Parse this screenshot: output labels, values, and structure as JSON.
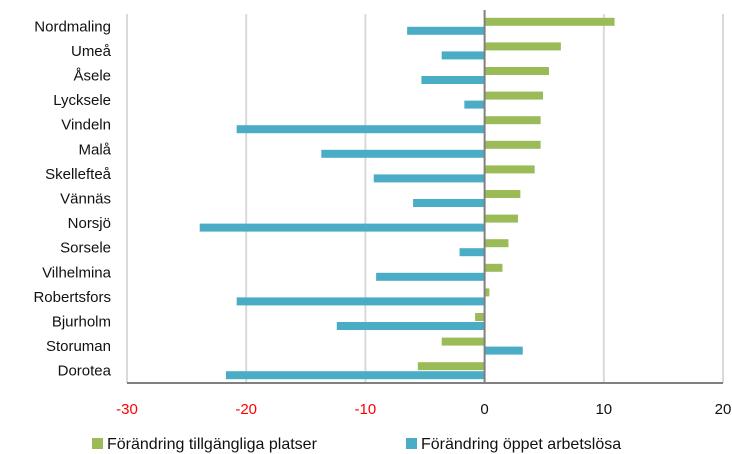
{
  "chart_data": {
    "type": "bar",
    "orientation": "horizontal",
    "categories": [
      "Nordmaling",
      "Umeå",
      "Åsele",
      "Lycksele",
      "Vindeln",
      "Malå",
      "Skellefteå",
      "Vännäs",
      "Norsjö",
      "Sorsele",
      "Vilhelmina",
      "Robertsfors",
      "Bjurholm",
      "Storuman",
      "Dorotea"
    ],
    "series": [
      {
        "name": "Förändring tillgängliga platser",
        "color": "#9bbb59",
        "values": [
          10.9,
          6.4,
          5.4,
          4.9,
          4.7,
          4.7,
          4.2,
          3.0,
          2.8,
          2.0,
          1.5,
          0.4,
          -0.8,
          -3.6,
          -5.6
        ]
      },
      {
        "name": "Förändring öppet arbetslösa",
        "color": "#4bacc6",
        "values": [
          -6.5,
          -3.6,
          -5.3,
          -1.7,
          -20.8,
          -13.7,
          -9.3,
          -6.0,
          -23.9,
          -2.1,
          -9.1,
          -20.8,
          -12.4,
          3.2,
          -21.7
        ]
      }
    ],
    "x_ticks": [
      "-30",
      "-20",
      "-10",
      "0",
      "10",
      "20"
    ],
    "x_tick_values": [
      -30,
      -20,
      -10,
      0,
      10,
      20
    ],
    "xlim": [
      -30,
      20
    ],
    "negative_tick_color": "#ff0000",
    "grid": true,
    "legend_position": "bottom",
    "title": "",
    "xlabel": "",
    "ylabel": ""
  }
}
